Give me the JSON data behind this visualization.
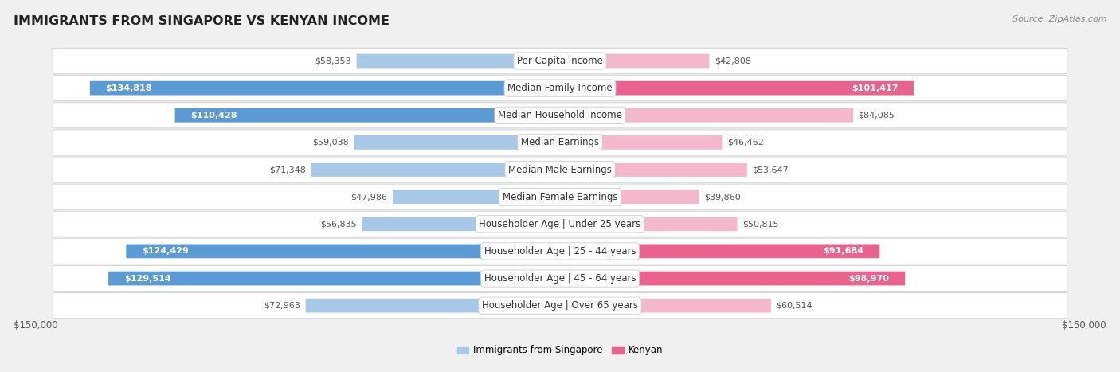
{
  "title": "IMMIGRANTS FROM SINGAPORE VS KENYAN INCOME",
  "source": "Source: ZipAtlas.com",
  "categories": [
    "Per Capita Income",
    "Median Family Income",
    "Median Household Income",
    "Median Earnings",
    "Median Male Earnings",
    "Median Female Earnings",
    "Householder Age | Under 25 years",
    "Householder Age | 25 - 44 years",
    "Householder Age | 45 - 64 years",
    "Householder Age | Over 65 years"
  ],
  "singapore_values": [
    58353,
    134818,
    110428,
    59038,
    71348,
    47986,
    56835,
    124429,
    129514,
    72963
  ],
  "kenyan_values": [
    42808,
    101417,
    84085,
    46462,
    53647,
    39860,
    50815,
    91684,
    98970,
    60514
  ],
  "singapore_labels": [
    "$58,353",
    "$134,818",
    "$110,428",
    "$59,038",
    "$71,348",
    "$47,986",
    "$56,835",
    "$124,429",
    "$129,514",
    "$72,963"
  ],
  "kenyan_labels": [
    "$42,808",
    "$101,417",
    "$84,085",
    "$46,462",
    "$53,647",
    "$39,860",
    "$50,815",
    "$91,684",
    "$98,970",
    "$60,514"
  ],
  "singapore_color_light": "#a8c8e8",
  "singapore_color_dark": "#5b9bd5",
  "kenyan_color_light": "#f4b8cc",
  "kenyan_color_dark": "#e8648e",
  "max_value": 150000,
  "xlabel_left": "$150,000",
  "xlabel_right": "$150,000",
  "legend_singapore": "Immigrants from Singapore",
  "legend_kenyan": "Kenyan",
  "bg_color": "#f0f0f0",
  "row_bg": "#f7f7f7",
  "title_color": "#222222",
  "label_inside_threshold": 90000,
  "label_fontsize": 8.0,
  "cat_fontsize": 8.5
}
